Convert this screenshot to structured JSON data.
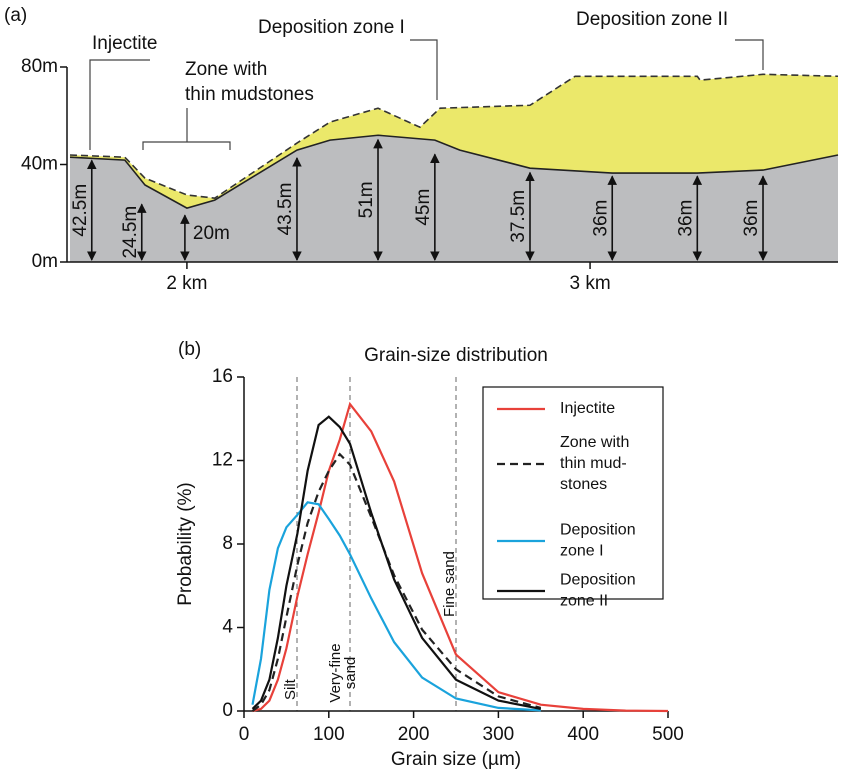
{
  "chart_data": [
    {
      "type": "profile",
      "panel_label": "(a)",
      "annotations": [
        [
          "Injectite"
        ],
        [
          "Zone with",
          "thin mudstones"
        ],
        [
          "Deposition zone I"
        ],
        [
          "Deposition zone II"
        ]
      ],
      "xlim": [
        1.71,
        3.615
      ],
      "xticks": [
        {
          "value": 2,
          "label": "2 km"
        },
        {
          "value": 3,
          "label": "3 km"
        }
      ],
      "ylim": [
        0,
        80
      ],
      "yticks": [
        {
          "value": 0,
          "label": "0m"
        },
        {
          "value": 40,
          "label": "40m"
        },
        {
          "value": 80,
          "label": "80m"
        }
      ],
      "ground": {
        "color": "#bcbdbf",
        "x": [
          1.71,
          1.846,
          1.896,
          2.0,
          2.069,
          2.273,
          2.355,
          2.474,
          2.615,
          2.677,
          2.851,
          3.055,
          3.266,
          3.429,
          3.615
        ],
        "y": [
          43.0,
          41.8,
          31.6,
          22.1,
          25.4,
          45.9,
          50.0,
          52.0,
          50.0,
          45.9,
          38.5,
          36.5,
          36.5,
          37.7,
          43.9
        ]
      },
      "deposit_top": {
        "color": "#ebe86a",
        "x": [
          1.71,
          1.846,
          1.896,
          2.0,
          2.069,
          2.273,
          2.355,
          2.474,
          2.578,
          2.628,
          2.851,
          2.963,
          3.266,
          3.273,
          3.429,
          3.615
        ],
        "y": [
          43.9,
          43.0,
          34.4,
          27.5,
          26.2,
          48.8,
          57.4,
          63.1,
          55.3,
          63.1,
          64.3,
          76.2,
          76.2,
          74.6,
          77.0,
          76.2
        ]
      },
      "measurements": {
        "x": [
          1.764,
          1.888,
          1.995,
          2.273,
          2.474,
          2.615,
          2.851,
          3.055,
          3.266,
          3.429
        ],
        "values": [
          42.5,
          24.5,
          20,
          43.5,
          51,
          45,
          37.5,
          36,
          36,
          36
        ],
        "value_labels": [
          "42.5m",
          "24.5m",
          "20m",
          "43.5m",
          "51m",
          "45m",
          "37.5m",
          "36m",
          "36m",
          "36m"
        ]
      }
    },
    {
      "type": "line",
      "panel_label": "(b)",
      "title": "Grain-size distribution",
      "xlabel": "Grain size (µm)",
      "ylabel": "Probability (%)",
      "xlim": [
        0,
        500
      ],
      "xticks": [
        0,
        100,
        200,
        300,
        400,
        500
      ],
      "ylim": [
        0,
        16
      ],
      "yticks": [
        0,
        4,
        8,
        12,
        16
      ],
      "reference_lines": [
        {
          "value": 62.5,
          "label": [
            "Silt"
          ]
        },
        {
          "value": 125,
          "label": [
            "Very-fine",
            "sand"
          ]
        },
        {
          "value": 250,
          "label": [
            "Fine sand"
          ]
        }
      ],
      "x": [
        10,
        20,
        30,
        40,
        50,
        63,
        75,
        88,
        100,
        113,
        125,
        150,
        177,
        210,
        250,
        300,
        350,
        400,
        450,
        500
      ],
      "series": [
        {
          "name": [
            "Injectite"
          ],
          "color": "#e8413a",
          "dashed": false,
          "values": [
            0,
            0.1,
            0.5,
            1.5,
            3,
            5.5,
            7.5,
            9.5,
            11.5,
            13,
            14.7,
            13.4,
            11,
            6.6,
            2.7,
            0.9,
            0.3,
            0.1,
            0.02,
            0
          ]
        },
        {
          "name": [
            "Zone with",
            "thin mud-",
            "stones"
          ],
          "color": "#222222",
          "dashed": true,
          "values": [
            0,
            0.3,
            1,
            2.5,
            4.5,
            7,
            9,
            10.5,
            11.5,
            12.3,
            11.8,
            9.3,
            6.5,
            3.9,
            2,
            0.7,
            0.15,
            null,
            null,
            null
          ]
        },
        {
          "name": [
            "Deposition",
            "zone I"
          ],
          "color": "#1aa3dc",
          "dashed": false,
          "values": [
            0.3,
            2.5,
            5.8,
            7.8,
            8.8,
            9.4,
            10,
            9.9,
            9.2,
            8.4,
            7.5,
            5.4,
            3.3,
            1.6,
            0.6,
            0.15,
            0.03,
            null,
            null,
            null
          ]
        },
        {
          "name": [
            "Deposition",
            "zone II"
          ],
          "color": "#111111",
          "dashed": false,
          "values": [
            0.1,
            0.5,
            1.5,
            3.5,
            6,
            8.5,
            11.5,
            13.7,
            14.1,
            13.6,
            12.8,
            9.5,
            6.3,
            3.5,
            1.5,
            0.5,
            0.1,
            null,
            null,
            null
          ]
        }
      ]
    }
  ]
}
